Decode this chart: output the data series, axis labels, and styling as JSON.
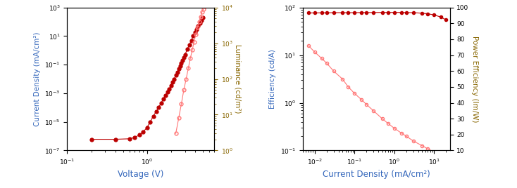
{
  "left": {
    "xlabel": "Voltage (V)",
    "ylabel_left": "Current Density (mA/cm²)",
    "ylabel_right": "Luminance (cd/m²)",
    "xlim": [
      0.1,
      7
    ],
    "ylim_left": [
      1e-07,
      1000.0
    ],
    "ylim_right": [
      1.0,
      10000.0
    ],
    "jv_voltage": [
      0.2,
      0.4,
      0.6,
      0.7,
      0.8,
      0.9,
      1.0,
      1.1,
      1.2,
      1.3,
      1.4,
      1.5,
      1.6,
      1.7,
      1.8,
      1.9,
      2.0,
      2.1,
      2.2,
      2.3,
      2.4,
      2.5,
      2.6,
      2.7,
      2.8,
      2.9,
      3.0,
      3.2,
      3.4,
      3.6,
      3.8,
      4.0,
      4.2,
      4.4,
      4.6,
      4.8,
      5.0
    ],
    "jv_current": [
      6e-07,
      6e-07,
      6.5e-07,
      8e-07,
      1.2e-06,
      2e-06,
      4e-06,
      1e-05,
      2.5e-05,
      5e-05,
      0.0001,
      0.0002,
      0.0004,
      0.0007,
      0.0012,
      0.002,
      0.0035,
      0.006,
      0.01,
      0.018,
      0.03,
      0.05,
      0.08,
      0.13,
      0.2,
      0.32,
      0.5,
      1.2,
      2.5,
      5.0,
      10.0,
      18.0,
      30.0,
      50.0,
      80.0,
      130.0,
      200.0
    ],
    "lv_voltage": [
      2.3,
      2.5,
      2.7,
      2.9,
      3.1,
      3.3,
      3.5,
      3.7,
      3.9,
      4.1,
      4.3,
      4.5,
      4.7,
      4.9,
      5.1,
      5.3,
      5.5,
      5.7,
      5.9,
      6.1,
      6.3,
      6.5
    ],
    "lv_luminance": [
      3,
      8,
      20,
      50,
      100,
      200,
      380,
      650,
      1100,
      1800,
      2800,
      4000,
      5500,
      7500,
      9000,
      11000,
      13000,
      15000,
      17000,
      19000,
      21000,
      23000
    ],
    "jv_color": "#bb0000",
    "lv_color": "#ff7777"
  },
  "right": {
    "xlabel": "Current Density (mA/cm²)",
    "ylabel_left": "Efficiency (cd/A)",
    "ylabel_right": "Power Efficiency (lm/W)",
    "xlim": [
      0.005,
      25
    ],
    "ylim_left": [
      0.1,
      100
    ],
    "ylim_right": [
      10,
      100
    ],
    "ce_x": [
      0.007,
      0.01,
      0.015,
      0.02,
      0.03,
      0.05,
      0.07,
      0.1,
      0.15,
      0.2,
      0.3,
      0.5,
      0.7,
      1.0,
      1.5,
      2.0,
      3.0,
      5.0,
      7.0,
      10.0,
      15.0,
      20.0
    ],
    "ce_y": [
      77,
      77,
      77.5,
      77.5,
      78,
      78,
      78,
      78,
      78.5,
      78.5,
      78.5,
      79,
      79,
      79,
      79,
      78.5,
      78,
      76,
      74,
      70,
      63,
      55
    ],
    "pe_x": [
      0.007,
      0.01,
      0.015,
      0.02,
      0.03,
      0.05,
      0.07,
      0.1,
      0.15,
      0.2,
      0.3,
      0.5,
      0.7,
      1.0,
      1.5,
      2.0,
      3.0,
      5.0,
      7.0,
      10.0,
      15.0,
      20.0
    ],
    "pe_y": [
      76,
      72,
      68,
      65,
      60,
      55,
      50,
      46,
      42,
      39,
      35,
      30,
      27,
      24,
      21,
      19,
      16,
      13,
      11,
      9,
      7,
      6
    ],
    "ce_color": "#bb0000",
    "pe_color": "#ff7777"
  },
  "axis_label_color_blue": "#3366bb",
  "axis_label_color_green": "#886600",
  "tick_color": "black"
}
